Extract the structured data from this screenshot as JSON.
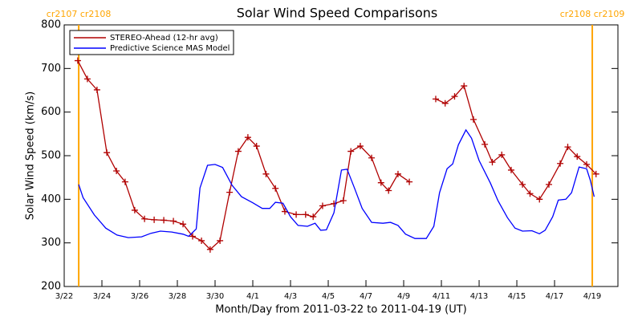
{
  "chart_data": {
    "type": "line",
    "title": "Solar Wind Speed Comparisons",
    "xlabel": "Month/Day from 2011-03-22 to 2011-04-19 (UT)",
    "ylabel": "Solar Wind Speed (km/s)",
    "xlim": [
      0,
      29.36
    ],
    "ylim": [
      200,
      800
    ],
    "yticks": [
      200,
      300,
      400,
      500,
      600,
      700,
      800
    ],
    "xticks": [
      {
        "value": 0,
        "label": "3/22"
      },
      {
        "value": 2,
        "label": "3/24"
      },
      {
        "value": 4,
        "label": "3/26"
      },
      {
        "value": 6,
        "label": "3/28"
      },
      {
        "value": 8,
        "label": "3/30"
      },
      {
        "value": 10,
        "label": "4/1"
      },
      {
        "value": 12,
        "label": "4/3"
      },
      {
        "value": 14,
        "label": "4/5"
      },
      {
        "value": 16,
        "label": "4/7"
      },
      {
        "value": 18,
        "label": "4/9"
      },
      {
        "value": 20,
        "label": "4/11"
      },
      {
        "value": 22,
        "label": "4/13"
      },
      {
        "value": 24,
        "label": "4/15"
      },
      {
        "value": 26,
        "label": "4/17"
      },
      {
        "value": 28,
        "label": "4/19"
      }
    ],
    "boundaries": [
      {
        "x": 0.77,
        "label": "cr2107 cr2108"
      },
      {
        "x": 28.0,
        "label": "cr2108 cr2109"
      }
    ],
    "boundary_color": "#ffa500",
    "series": [
      {
        "name": "STEREO-Ahead (12-hr avg)",
        "color": "#b00000",
        "marker": "plus",
        "x": [
          0.72,
          1.23,
          1.74,
          2.26,
          2.77,
          3.23,
          3.74,
          4.26,
          4.77,
          5.28,
          5.79,
          6.3,
          6.81,
          7.28,
          7.74,
          8.26,
          8.77,
          9.23,
          9.74,
          10.2,
          10.7,
          11.2,
          11.7,
          12.3,
          12.8,
          13.2,
          13.7,
          14.3,
          14.8,
          15.2,
          15.7,
          16.3,
          16.8,
          17.2,
          17.7,
          18.3,
          19.0,
          19.7,
          20.2,
          20.7,
          21.2,
          21.7,
          22.3,
          22.7,
          23.2,
          23.7,
          24.3,
          24.7,
          25.2,
          25.7,
          26.3,
          26.7,
          27.2,
          27.7,
          28.2
        ],
        "values": [
          718,
          676,
          651,
          507,
          465,
          440,
          375,
          355,
          353,
          352,
          350,
          343,
          315,
          305,
          285,
          305,
          416,
          510,
          542,
          522,
          458,
          425,
          372,
          365,
          365,
          360,
          385,
          390,
          397,
          510,
          522,
          495,
          438,
          420,
          458,
          440,
          null,
          630,
          620,
          636,
          660,
          583,
          526,
          485,
          502,
          467,
          434,
          413,
          400,
          434,
          482,
          520,
          498,
          480,
          458
        ]
      },
      {
        "name": "Predictive Science MAS Model",
        "color": "#0000ff",
        "marker": "none",
        "x": [
          0.77,
          1.0,
          1.6,
          2.2,
          2.8,
          3.4,
          4.1,
          4.6,
          5.1,
          5.7,
          6.3,
          6.6,
          7.0,
          7.2,
          7.6,
          8.0,
          8.4,
          8.9,
          9.4,
          10.0,
          10.5,
          10.9,
          11.2,
          11.6,
          12.0,
          12.4,
          12.9,
          13.3,
          13.6,
          13.9,
          14.3,
          14.7,
          15.0,
          15.4,
          15.8,
          16.3,
          16.9,
          17.3,
          17.7,
          18.1,
          18.6,
          19.2,
          19.6,
          19.9,
          20.3,
          20.6,
          20.9,
          21.3,
          21.6,
          22.0,
          22.6,
          23.0,
          23.5,
          23.9,
          24.3,
          24.8,
          25.2,
          25.5,
          25.9,
          26.2,
          26.6,
          26.9,
          27.3,
          27.7,
          27.9,
          28.1
        ],
        "values": [
          434,
          404,
          364,
          334,
          318,
          312,
          314,
          322,
          327,
          325,
          320,
          315,
          332,
          426,
          478,
          480,
          473,
          432,
          406,
          392,
          379,
          379,
          393,
          391,
          360,
          340,
          338,
          345,
          329,
          330,
          369,
          467,
          469,
          425,
          379,
          347,
          345,
          347,
          340,
          320,
          310,
          310,
          338,
          415,
          470,
          481,
          525,
          559,
          540,
          489,
          437,
          397,
          358,
          334,
          327,
          328,
          321,
          329,
          360,
          398,
          400,
          415,
          474,
          470,
          443,
          406
        ]
      }
    ]
  }
}
